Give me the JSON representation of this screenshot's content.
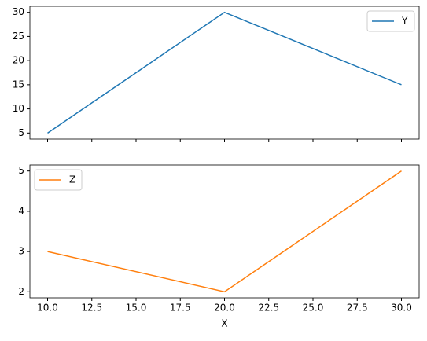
{
  "chart_data": [
    {
      "type": "line",
      "x": [
        10,
        20,
        30
      ],
      "series": [
        {
          "name": "Y",
          "color": "#1f77b4",
          "values": [
            5,
            30,
            15
          ]
        }
      ],
      "xlim": [
        9,
        31
      ],
      "xticks": [
        10,
        12.5,
        15,
        17.5,
        20,
        22.5,
        25,
        27.5,
        30
      ],
      "ylim": [
        3.75,
        31.25
      ],
      "yticks": [
        5,
        10,
        15,
        20,
        25,
        30
      ],
      "legend": "upper right"
    },
    {
      "type": "line",
      "x": [
        10,
        20,
        30
      ],
      "xlabel": "X",
      "series": [
        {
          "name": "Z",
          "color": "#ff7f0e",
          "values": [
            3,
            2,
            5
          ]
        }
      ],
      "xlim": [
        9,
        31
      ],
      "xticks": [
        {
          "value": 10,
          "label": "10.0"
        },
        12.5,
        {
          "value": 15,
          "label": "15.0"
        },
        17.5,
        {
          "value": 20,
          "label": "20.0"
        },
        22.5,
        {
          "value": 25,
          "label": "25.0"
        },
        27.5,
        {
          "value": 30,
          "label": "30.0"
        }
      ],
      "ylim": [
        1.85,
        5.15
      ],
      "yticks": [
        2,
        3,
        4,
        5
      ],
      "legend": "upper left"
    }
  ]
}
